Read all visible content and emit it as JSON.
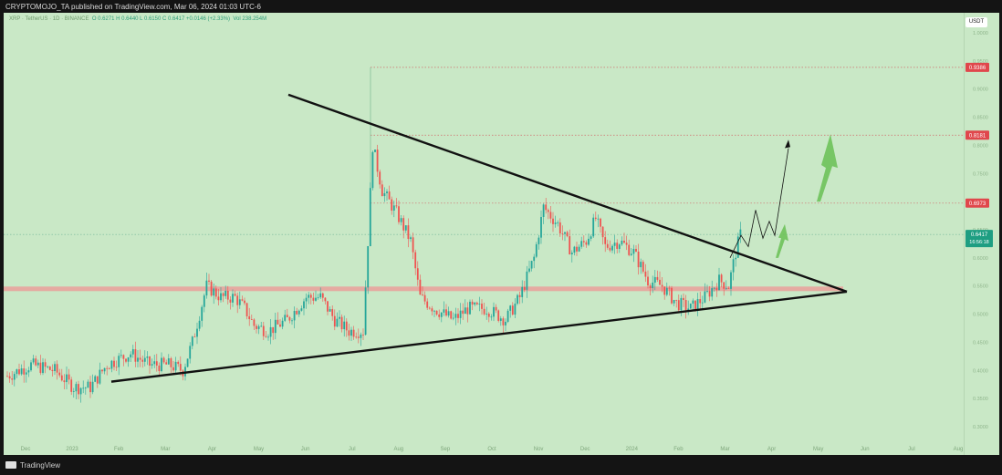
{
  "header": {
    "publisher_line": "CRYPTOMOJO_TA published on TradingView.com, Mar 06, 2024 01:03 UTC-6"
  },
  "info": {
    "symbol": "XRP · TetherUS · 1D · BINANCE",
    "ohlc": "O 0.6271  H 0.6440  L 0.6150  C 0.6417  +0.0146 (+2.33%)",
    "volume": "Vol 238.254M"
  },
  "currency_badge": "USDT",
  "footer": {
    "brand": "TradingView"
  },
  "colors": {
    "background": "#c9e8c6",
    "bull": "#26a69a",
    "bear": "#ef5350",
    "trendline": "#111111",
    "support_band": "#e8a39c",
    "level_badge": "#e0474c",
    "current_badge": "#1e9e82",
    "arrow": "#6ec25a"
  },
  "chart_data": {
    "type": "candlestick",
    "title": "",
    "ylim": [
      0.33,
      1.05
    ],
    "y_ticks": [
      "1.0000",
      "0.9500",
      "0.9000",
      "0.8500",
      "0.8000",
      "0.7500",
      "0.7000",
      "0.6500",
      "0.6000",
      "0.5500",
      "0.5000",
      "0.4500",
      "0.4000",
      "0.3500",
      "0.3000"
    ],
    "x_labels": [
      "Dec",
      "2023",
      "Feb",
      "Mar",
      "Apr",
      "May",
      "Jun",
      "Jul",
      "Aug",
      "Sep",
      "Oct",
      "Nov",
      "Dec",
      "2024",
      "Feb",
      "Mar",
      "Apr",
      "May",
      "Jun",
      "Jul",
      "Aug"
    ],
    "levels": [
      {
        "label": "0.9386",
        "value": 0.9386
      },
      {
        "label": "0.8181",
        "value": 0.8181
      },
      {
        "label": "0.6973",
        "value": 0.6973
      }
    ],
    "current_price": {
      "label": "0.6417",
      "countdown": "16:56:18",
      "value": 0.6417
    },
    "support_level": 0.545,
    "close_path": [
      [
        0,
        0.39
      ],
      [
        10,
        0.41
      ],
      [
        20,
        0.4
      ],
      [
        28,
        0.37
      ],
      [
        35,
        0.37
      ],
      [
        42,
        0.41
      ],
      [
        52,
        0.43
      ],
      [
        60,
        0.41
      ],
      [
        68,
        0.41
      ],
      [
        74,
        0.4
      ],
      [
        78,
        0.45
      ],
      [
        84,
        0.55
      ],
      [
        90,
        0.53
      ],
      [
        96,
        0.53
      ],
      [
        100,
        0.51
      ],
      [
        104,
        0.48
      ],
      [
        110,
        0.47
      ],
      [
        118,
        0.49
      ],
      [
        126,
        0.53
      ],
      [
        132,
        0.53
      ],
      [
        138,
        0.49
      ],
      [
        144,
        0.47
      ],
      [
        150,
        0.47
      ],
      [
        152,
        0.63
      ],
      [
        154,
        0.8
      ],
      [
        158,
        0.72
      ],
      [
        164,
        0.68
      ],
      [
        170,
        0.63
      ],
      [
        174,
        0.53
      ],
      [
        180,
        0.51
      ],
      [
        188,
        0.49
      ],
      [
        194,
        0.51
      ],
      [
        202,
        0.51
      ],
      [
        210,
        0.49
      ],
      [
        216,
        0.53
      ],
      [
        222,
        0.6
      ],
      [
        226,
        0.69
      ],
      [
        232,
        0.66
      ],
      [
        238,
        0.61
      ],
      [
        244,
        0.63
      ],
      [
        248,
        0.67
      ],
      [
        252,
        0.62
      ],
      [
        258,
        0.63
      ],
      [
        264,
        0.61
      ],
      [
        270,
        0.56
      ],
      [
        276,
        0.55
      ],
      [
        282,
        0.52
      ],
      [
        288,
        0.51
      ],
      [
        294,
        0.53
      ],
      [
        300,
        0.56
      ],
      [
        304,
        0.55
      ],
      [
        307,
        0.61
      ],
      [
        309,
        0.6417
      ]
    ],
    "upper_trendline": [
      [
        0.89,
        0.54
      ]
    ],
    "lower_trendline": [
      [
        0.38,
        0.54
      ]
    ],
    "projection_arrow_target": 0.795
  }
}
